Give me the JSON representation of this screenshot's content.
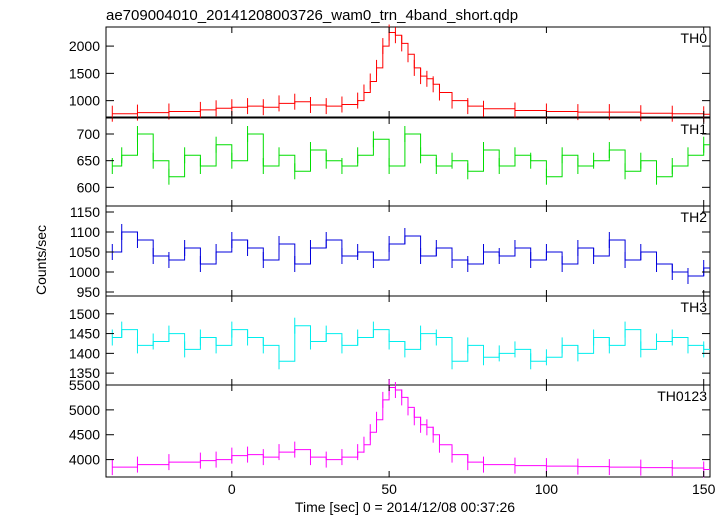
{
  "chart_data": {
    "type": "line",
    "title": "ae709004010_20141208003726_wam0_trn_4band_short.qdp",
    "xlabel": "Time [sec] 0 = 2014/12/08 00:37:26",
    "ylabel": "Counts/sec",
    "xlim": [
      -40,
      152
    ],
    "xticks": [
      0,
      50,
      100,
      150
    ],
    "xticklabels": [
      "0",
      "50",
      "100",
      "150"
    ],
    "grid": false,
    "panels": [
      {
        "name": "TH0",
        "color": "#ff0000",
        "ylim": [
          700,
          2350
        ],
        "yticks": [
          1000,
          1500,
          2000
        ],
        "series": [
          {
            "name": "TH0",
            "x": [
              -38,
              -30,
              -20,
              -10,
              -5,
              0,
              5,
              10,
              15,
              20,
              25,
              30,
              35,
              40,
              42,
              44,
              46,
              48,
              50,
              52,
              54,
              56,
              58,
              60,
              62,
              64,
              66,
              70,
              75,
              80,
              90,
              100,
              110,
              120,
              130,
              140,
              150
            ],
            "y": [
              760,
              780,
              800,
              830,
              860,
              880,
              900,
              880,
              950,
              980,
              920,
              900,
              930,
              1000,
              1150,
              1350,
              1600,
              2000,
              2250,
              2200,
              2050,
              1850,
              1600,
              1450,
              1400,
              1300,
              1150,
              1000,
              900,
              850,
              820,
              800,
              790,
              790,
              770,
              760,
              750
            ]
          }
        ]
      },
      {
        "name": "TH1",
        "color": "#00dd00",
        "ylim": [
          565,
          730
        ],
        "yticks": [
          600,
          650,
          700
        ],
        "series": [
          {
            "name": "TH1",
            "x": [
              -38,
              -35,
              -30,
              -25,
              -20,
              -15,
              -10,
              -5,
              0,
              5,
              10,
              15,
              20,
              25,
              30,
              35,
              40,
              45,
              50,
              55,
              60,
              65,
              70,
              75,
              80,
              85,
              90,
              95,
              100,
              105,
              110,
              115,
              120,
              125,
              130,
              135,
              140,
              145,
              150
            ],
            "y": [
              640,
              660,
              700,
              650,
              620,
              660,
              640,
              680,
              650,
              700,
              640,
              660,
              630,
              670,
              650,
              640,
              660,
              690,
              640,
              700,
              660,
              640,
              650,
              630,
              670,
              640,
              660,
              650,
              620,
              660,
              640,
              650,
              670,
              630,
              650,
              620,
              640,
              660,
              680
            ]
          }
        ]
      },
      {
        "name": "TH2",
        "color": "#0000dd",
        "ylim": [
          940,
          1165
        ],
        "yticks": [
          950,
          1000,
          1050,
          1100,
          1150
        ],
        "series": [
          {
            "name": "TH2",
            "x": [
              -38,
              -35,
              -30,
              -25,
              -20,
              -15,
              -10,
              -5,
              0,
              5,
              10,
              15,
              20,
              25,
              30,
              35,
              40,
              45,
              50,
              55,
              60,
              65,
              70,
              75,
              80,
              85,
              90,
              95,
              100,
              105,
              110,
              115,
              120,
              125,
              130,
              135,
              140,
              145,
              150
            ],
            "y": [
              1050,
              1100,
              1080,
              1040,
              1030,
              1060,
              1020,
              1050,
              1080,
              1060,
              1030,
              1070,
              1020,
              1060,
              1080,
              1040,
              1050,
              1030,
              1070,
              1090,
              1040,
              1060,
              1030,
              1020,
              1050,
              1040,
              1060,
              1030,
              1050,
              1020,
              1060,
              1040,
              1080,
              1030,
              1050,
              1020,
              1000,
              990,
              1010
            ]
          }
        ]
      },
      {
        "name": "TH3",
        "color": "#00eeee",
        "ylim": [
          1320,
          1545
        ],
        "yticks": [
          1350,
          1400,
          1450,
          1500
        ],
        "series": [
          {
            "name": "TH3",
            "x": [
              -38,
              -35,
              -30,
              -25,
              -20,
              -15,
              -10,
              -5,
              0,
              5,
              10,
              15,
              20,
              25,
              30,
              35,
              40,
              45,
              50,
              55,
              60,
              65,
              70,
              75,
              80,
              85,
              90,
              95,
              100,
              105,
              110,
              115,
              120,
              125,
              130,
              135,
              140,
              145,
              150
            ],
            "y": [
              1440,
              1460,
              1420,
              1430,
              1450,
              1410,
              1440,
              1420,
              1460,
              1440,
              1420,
              1380,
              1470,
              1430,
              1450,
              1420,
              1440,
              1460,
              1430,
              1410,
              1450,
              1440,
              1380,
              1420,
              1390,
              1400,
              1410,
              1380,
              1390,
              1420,
              1400,
              1440,
              1420,
              1460,
              1410,
              1430,
              1440,
              1420,
              1410
            ]
          }
        ]
      },
      {
        "name": "TH0123",
        "color": "#ff00ff",
        "ylim": [
          3650,
          5500
        ],
        "yticks": [
          4000,
          4500,
          5000,
          5500
        ],
        "series": [
          {
            "name": "TH0123",
            "x": [
              -38,
              -30,
              -20,
              -10,
              -5,
              0,
              5,
              10,
              15,
              20,
              25,
              30,
              35,
              40,
              42,
              44,
              46,
              48,
              50,
              52,
              54,
              56,
              58,
              60,
              62,
              64,
              66,
              70,
              75,
              80,
              90,
              100,
              110,
              120,
              130,
              140,
              150
            ],
            "y": [
              3850,
              3900,
              3950,
              3980,
              4000,
              4080,
              4100,
              4050,
              4150,
              4200,
              4050,
              4000,
              4050,
              4150,
              4300,
              4550,
              4800,
              5200,
              5450,
              5400,
              5250,
              5050,
              4850,
              4700,
              4650,
              4500,
              4300,
              4100,
              3950,
              3900,
              3880,
              3870,
              3860,
              3850,
              3840,
              3830,
              3800
            ]
          }
        ]
      }
    ]
  }
}
